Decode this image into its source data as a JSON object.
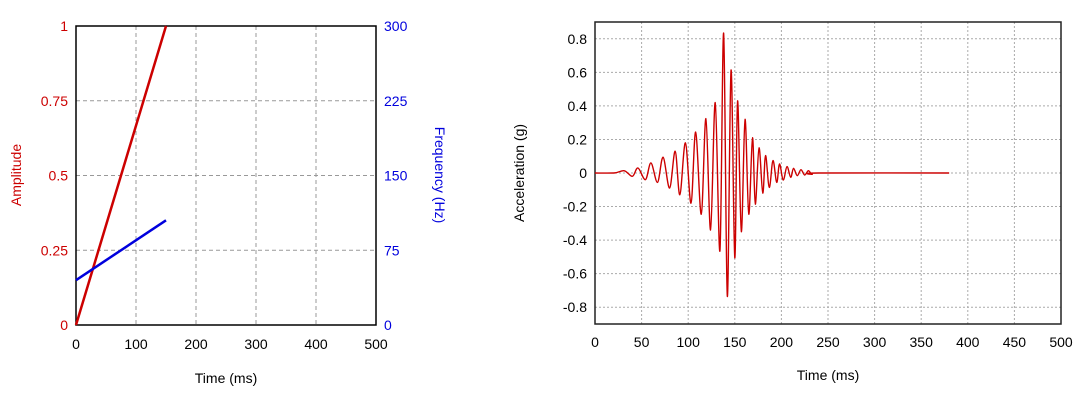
{
  "chart_data": [
    {
      "type": "line",
      "xlabel": "Time (ms)",
      "ylabel": "Amplitude",
      "ylabel_right": "Frequency (Hz)",
      "xlim": [
        0,
        500
      ],
      "ylim": [
        0,
        1
      ],
      "ylim_right": [
        0,
        300
      ],
      "x_ticks": [
        "0",
        "100",
        "200",
        "300",
        "400",
        "500"
      ],
      "y_ticks": [
        "0",
        "0.25",
        "0.5",
        "0.75",
        "1"
      ],
      "y_ticks_right": [
        "0",
        "75",
        "150",
        "225",
        "300"
      ],
      "grid": true,
      "colors": {
        "left": "#cc0000",
        "right": "#0000dd"
      },
      "series": [
        {
          "axis": "left",
          "color": "#cc0000",
          "x": [
            0,
            150
          ],
          "y": [
            0,
            1
          ]
        },
        {
          "axis": "right",
          "color": "#0000dd",
          "x": [
            0,
            150
          ],
          "y": [
            45,
            105
          ]
        }
      ]
    },
    {
      "type": "line",
      "xlabel": "Time (ms)",
      "ylabel": "Acceleration (g)",
      "xlim": [
        0,
        500
      ],
      "ylim": [
        -0.9,
        0.9
      ],
      "x_ticks": [
        "0",
        "50",
        "100",
        "150",
        "200",
        "250",
        "300",
        "350",
        "400",
        "450",
        "500"
      ],
      "y_ticks": [
        "-0.8",
        "-0.6",
        "-0.4",
        "-0.2",
        "0",
        "0.2",
        "0.4",
        "0.6",
        "0.8"
      ],
      "grid": true,
      "series": [
        {
          "color": "#cc0000",
          "x": [
            0,
            20,
            31,
            40,
            46,
            54,
            60,
            67,
            73,
            80,
            86,
            91,
            97,
            103,
            108,
            114,
            119,
            124,
            129,
            134,
            138,
            142,
            146,
            150,
            153,
            157,
            161,
            165,
            169,
            172,
            176,
            180,
            183,
            187,
            191,
            195,
            198,
            202,
            206,
            210,
            213,
            217,
            221,
            225,
            229,
            233,
            240,
            380
          ],
          "y": [
            0,
            0,
            0.014,
            -0.02,
            0.03,
            -0.04,
            0.06,
            -0.056,
            0.094,
            -0.09,
            0.13,
            -0.13,
            0.18,
            -0.18,
            0.244,
            -0.246,
            0.324,
            -0.34,
            0.42,
            -0.466,
            0.834,
            -0.736,
            0.614,
            -0.506,
            0.43,
            -0.35,
            0.32,
            -0.246,
            0.21,
            -0.186,
            0.15,
            -0.12,
            0.104,
            -0.086,
            0.074,
            -0.056,
            0.054,
            -0.042,
            0.038,
            -0.026,
            0.028,
            -0.016,
            0.02,
            -0.012,
            0.014,
            -0.008,
            0,
            0
          ]
        }
      ]
    }
  ]
}
